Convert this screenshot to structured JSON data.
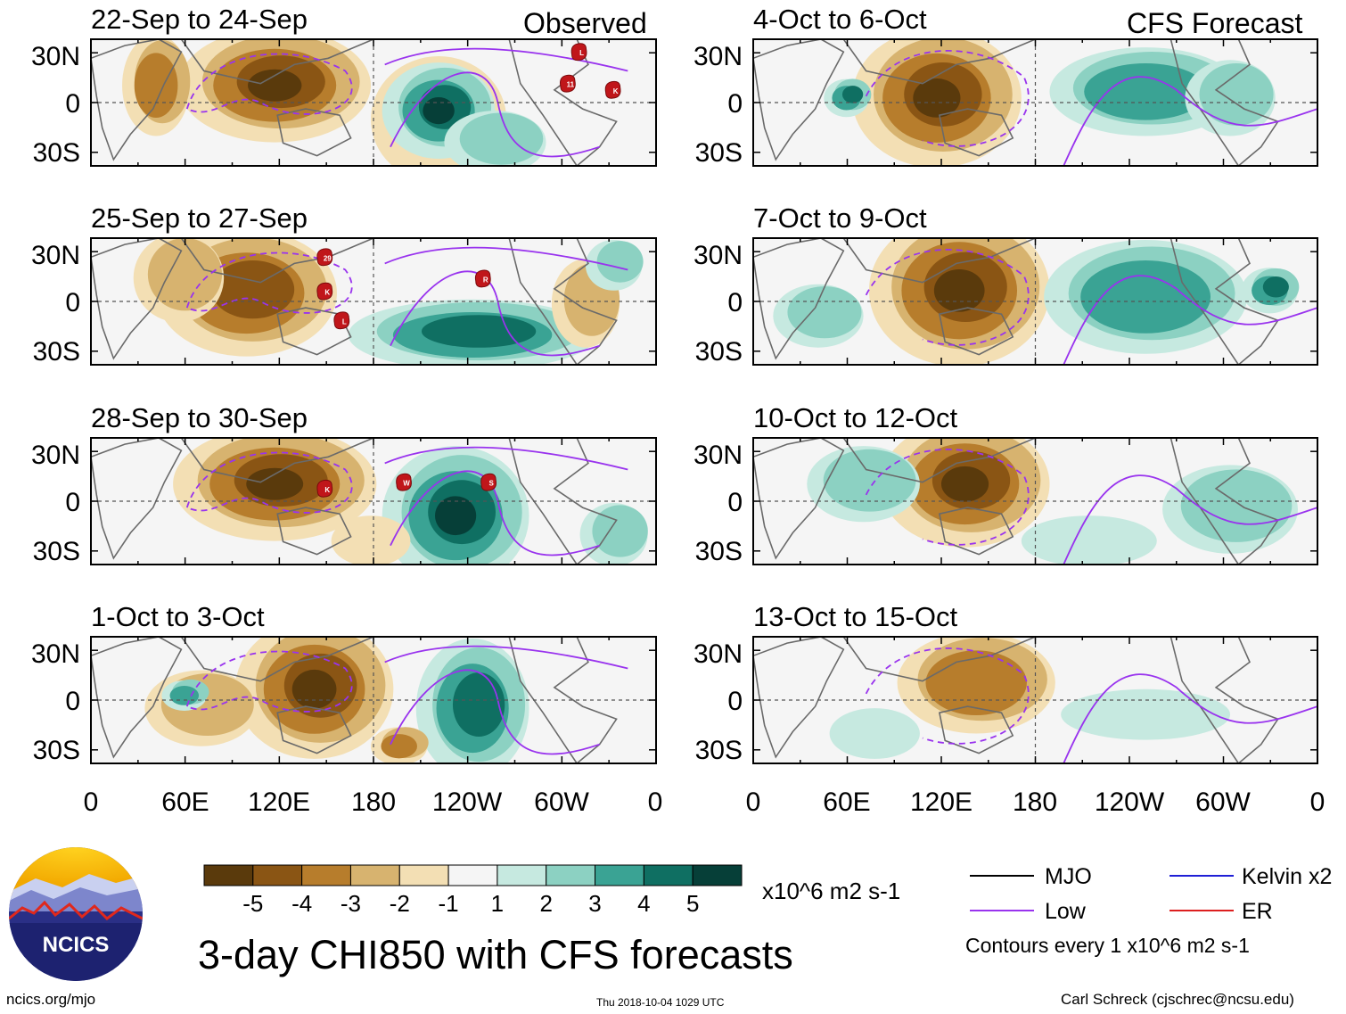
{
  "header": {
    "observed_label": "Observed",
    "forecast_label": "CFS Forecast"
  },
  "panels_left": [
    {
      "date_range": "22-Sep to 24-Sep",
      "storms": [
        "L",
        "11",
        "K"
      ]
    },
    {
      "date_range": "25-Sep to 27-Sep",
      "storms": [
        "29",
        "K",
        "L",
        "R"
      ]
    },
    {
      "date_range": "28-Sep to 30-Sep",
      "storms": [
        "K",
        "W",
        "S"
      ]
    },
    {
      "date_range": "1-Oct to 3-Oct",
      "storms": []
    }
  ],
  "panels_right": [
    {
      "date_range": "4-Oct to 6-Oct"
    },
    {
      "date_range": "7-Oct to 9-Oct"
    },
    {
      "date_range": "10-Oct to 12-Oct"
    },
    {
      "date_range": "13-Oct to 15-Oct"
    }
  ],
  "lat_labels": [
    "30N",
    "0",
    "30S"
  ],
  "lon_labels": [
    "0",
    "60E",
    "120E",
    "180",
    "120W",
    "60W",
    "0"
  ],
  "colorbar": {
    "ticks": [
      "-5",
      "-4",
      "-3",
      "-2",
      "-1",
      "1",
      "2",
      "3",
      "4",
      "5"
    ],
    "colors": [
      "#5a3a0c",
      "#8a5514",
      "#b77d2c",
      "#d7b36f",
      "#f3dfb4",
      "#f5f5f5",
      "#c6e9e0",
      "#8cd1c2",
      "#3aa394",
      "#0f6f62",
      "#063f38"
    ],
    "units": "x10^6 m2 s-1"
  },
  "legend": {
    "items": [
      {
        "label": "MJO",
        "color": "#000000"
      },
      {
        "label": "Kelvin x2",
        "color": "#1f1fd6"
      },
      {
        "label": "Low",
        "color": "#9933ee"
      },
      {
        "label": "ER",
        "color": "#dd1f1f"
      }
    ],
    "note": "Contours every 1 x10^6 m2 s-1"
  },
  "title": "3-day CHI850 with CFS forecasts",
  "logo_text": "NCICS",
  "footer": {
    "url": "ncics.org/mjo",
    "timestamp": "Thu 2018-10-04 1029 UTC",
    "author": "Carl Schreck (cjschrec@ncsu.edu)"
  }
}
